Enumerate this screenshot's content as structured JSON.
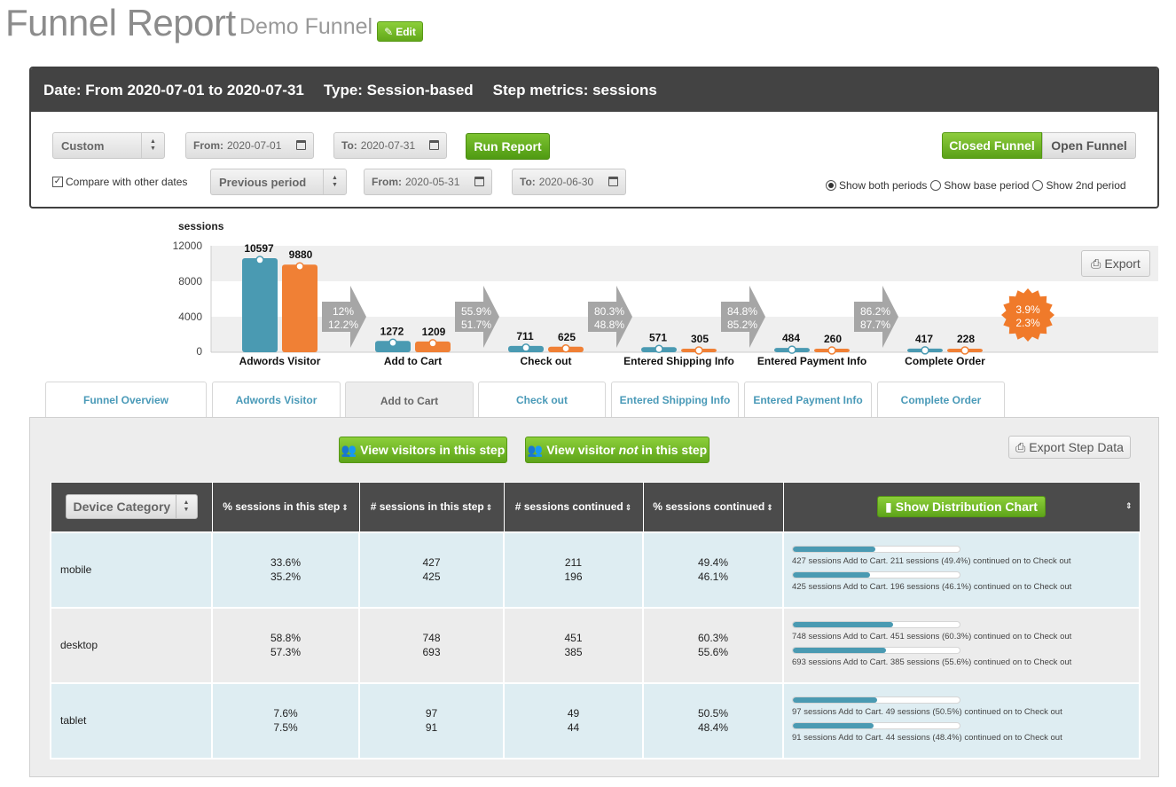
{
  "header": {
    "title": "Funnel Report",
    "funnel_name": "Demo Funnel",
    "edit_label": "Edit"
  },
  "summary": {
    "date": "Date: From 2020-07-01 to 2020-07-31",
    "type": "Type: Session-based",
    "metrics": "Step metrics: sessions"
  },
  "controls": {
    "range_select": "Custom",
    "from_label": "From:",
    "from_value": "2020-07-01",
    "to_label": "To:",
    "to_value": "2020-07-31",
    "run_label": "Run Report",
    "compare_label": "Compare with other dates",
    "compare_checked": true,
    "compare_select": "Previous period",
    "cmp_from_value": "2020-05-31",
    "cmp_to_value": "2020-06-30",
    "closed_label": "Closed Funnel",
    "open_label": "Open Funnel",
    "radio_both": "Show both periods",
    "radio_base": "Show base period",
    "radio_2nd": "Show 2nd period",
    "selected_radio": "both"
  },
  "chart_export_label": "Export",
  "chart_data": {
    "type": "bar",
    "ylabel": "sessions",
    "ylim": [
      0,
      12000
    ],
    "yticks": [
      0,
      4000,
      8000,
      12000
    ],
    "categories": [
      "Adwords Visitor",
      "Add to Cart",
      "Check out",
      "Entered Shipping Info",
      "Entered Payment Info",
      "Complete Order"
    ],
    "series": [
      {
        "values": [
          10597,
          1272,
          711,
          571,
          484,
          417
        ],
        "color": "#4a9ab2"
      },
      {
        "values": [
          9880,
          1209,
          625,
          305,
          260,
          228
        ],
        "color": "#f08035"
      }
    ],
    "conversion_rates": [
      [
        "12%",
        "12.2%"
      ],
      [
        "55.9%",
        "51.7%"
      ],
      [
        "80.3%",
        "48.8%"
      ],
      [
        "84.8%",
        "85.2%"
      ],
      [
        "86.2%",
        "87.7%"
      ]
    ],
    "overall_conversion": [
      "3.9%",
      "2.3%"
    ],
    "colors": {
      "series1": "#4a9ab2",
      "series2": "#f08035",
      "arrow": "#a6a6a6",
      "badge": "#f07a2a",
      "band": "#efefef"
    }
  },
  "tabs": [
    {
      "label": "Funnel Overview",
      "active": false
    },
    {
      "label": "Adwords Visitor",
      "active": false
    },
    {
      "label": "Add to Cart",
      "active": true
    },
    {
      "label": "Check out",
      "active": false
    },
    {
      "label": "Entered Shipping Info",
      "active": false
    },
    {
      "label": "Entered Payment Info",
      "active": false
    },
    {
      "label": "Complete Order",
      "active": false
    }
  ],
  "step": {
    "view_in": "View visitors in this step",
    "view_not_a": "View visitor ",
    "view_not_b": "not",
    "view_not_c": " in this step",
    "export_label": "Export Step Data"
  },
  "table": {
    "group_select": "Device Category",
    "columns": [
      "% sessions in this step",
      "# sessions in this step",
      "# sessions continued",
      "% sessions continued"
    ],
    "dist_button": "Show Distribution Chart",
    "rows": [
      {
        "label": "mobile",
        "pct": [
          "33.6%",
          "35.2%"
        ],
        "num": [
          "427",
          "425"
        ],
        "cont": [
          "211",
          "196"
        ],
        "pctc": [
          "49.4%",
          "46.1%"
        ],
        "bars": [
          {
            "frac": 0.494,
            "text": "427 sessions Add to Cart. 211 sessions (49.4%) continued on to Check out"
          },
          {
            "frac": 0.461,
            "text": "425 sessions Add to Cart. 196 sessions (46.1%) continued on to Check out"
          }
        ]
      },
      {
        "label": "desktop",
        "pct": [
          "58.8%",
          "57.3%"
        ],
        "num": [
          "748",
          "693"
        ],
        "cont": [
          "451",
          "385"
        ],
        "pctc": [
          "60.3%",
          "55.6%"
        ],
        "bars": [
          {
            "frac": 0.603,
            "text": "748 sessions Add to Cart. 451 sessions (60.3%) continued on to Check out"
          },
          {
            "frac": 0.556,
            "text": "693 sessions Add to Cart. 385 sessions (55.6%) continued on to Check out"
          }
        ]
      },
      {
        "label": "tablet",
        "pct": [
          "7.6%",
          "7.5%"
        ],
        "num": [
          "97",
          "91"
        ],
        "cont": [
          "49",
          "44"
        ],
        "pctc": [
          "50.5%",
          "48.4%"
        ],
        "bars": [
          {
            "frac": 0.505,
            "text": "97 sessions Add to Cart. 49 sessions (50.5%) continued on to Check out"
          },
          {
            "frac": 0.484,
            "text": "91 sessions Add to Cart. 44 sessions (48.4%) continued on to Check out"
          }
        ]
      }
    ]
  }
}
